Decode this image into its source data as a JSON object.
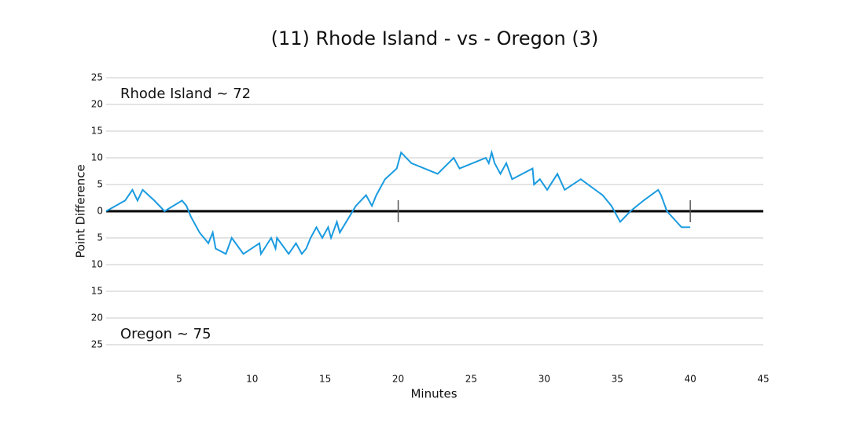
{
  "chart_data": {
    "type": "line",
    "title": "(11) Rhode Island - vs - Oregon (3)",
    "x_label": "Minutes",
    "y_label": "Point Difference",
    "annotations": [
      "Rhode Island ~ 72",
      "Oregon ~ 75"
    ],
    "color": "#1a9be0",
    "grid": true,
    "xlim": [
      0,
      45
    ],
    "xticks": [
      5,
      10,
      15,
      20,
      25,
      30,
      35,
      40,
      45
    ],
    "ylim": [
      -25,
      25
    ],
    "yticks": [
      25,
      20,
      15,
      10,
      5,
      0,
      {
        "value": -5,
        "label": "5"
      },
      {
        "value": -10,
        "label": "10"
      },
      {
        "value": -15,
        "label": "15"
      },
      {
        "value": -20,
        "label": "20"
      },
      {
        "value": -25,
        "label": "25"
      }
    ],
    "period_markers": [
      20,
      40
    ],
    "x": [
      0,
      1.3,
      1.8,
      2.15,
      2.5,
      3.3,
      4.0,
      5.2,
      5.5,
      5.8,
      6.4,
      7.0,
      7.3,
      7.5,
      8.2,
      8.6,
      9.4,
      10.5,
      10.6,
      11.3,
      11.6,
      11.7,
      12.5,
      13.0,
      13.4,
      13.7,
      14.0,
      14.4,
      14.8,
      15.2,
      15.4,
      15.8,
      16.0,
      17.1,
      17.8,
      18.2,
      18.5,
      19.1,
      19.9,
      20.2,
      20.9,
      22.7,
      23.8,
      24.2,
      26.0,
      26.2,
      26.4,
      26.6,
      27.0,
      27.4,
      27.8,
      29.2,
      29.3,
      29.7,
      30.2,
      30.9,
      31.4,
      32.5,
      34.0,
      34.6,
      35.2,
      35.9,
      36.8,
      37.8,
      38.0,
      38.4,
      39.4,
      40.0
    ],
    "values": [
      0,
      2,
      4,
      2,
      4,
      2,
      0,
      2,
      1,
      -1,
      -4,
      -6,
      -4,
      -7,
      -8,
      -5,
      -8,
      -6,
      -8,
      -5,
      -7,
      -5,
      -8,
      -6,
      -8,
      -7,
      -5,
      -3,
      -5,
      -3,
      -5,
      -2,
      -4,
      1,
      3,
      1,
      3,
      6,
      8,
      11,
      9,
      7,
      10,
      8,
      10,
      9,
      11,
      9,
      7,
      9,
      6,
      8,
      5,
      6,
      4,
      7,
      4,
      6,
      3,
      1,
      -2,
      0,
      2,
      4,
      3,
      0,
      -3,
      -3
    ]
  }
}
